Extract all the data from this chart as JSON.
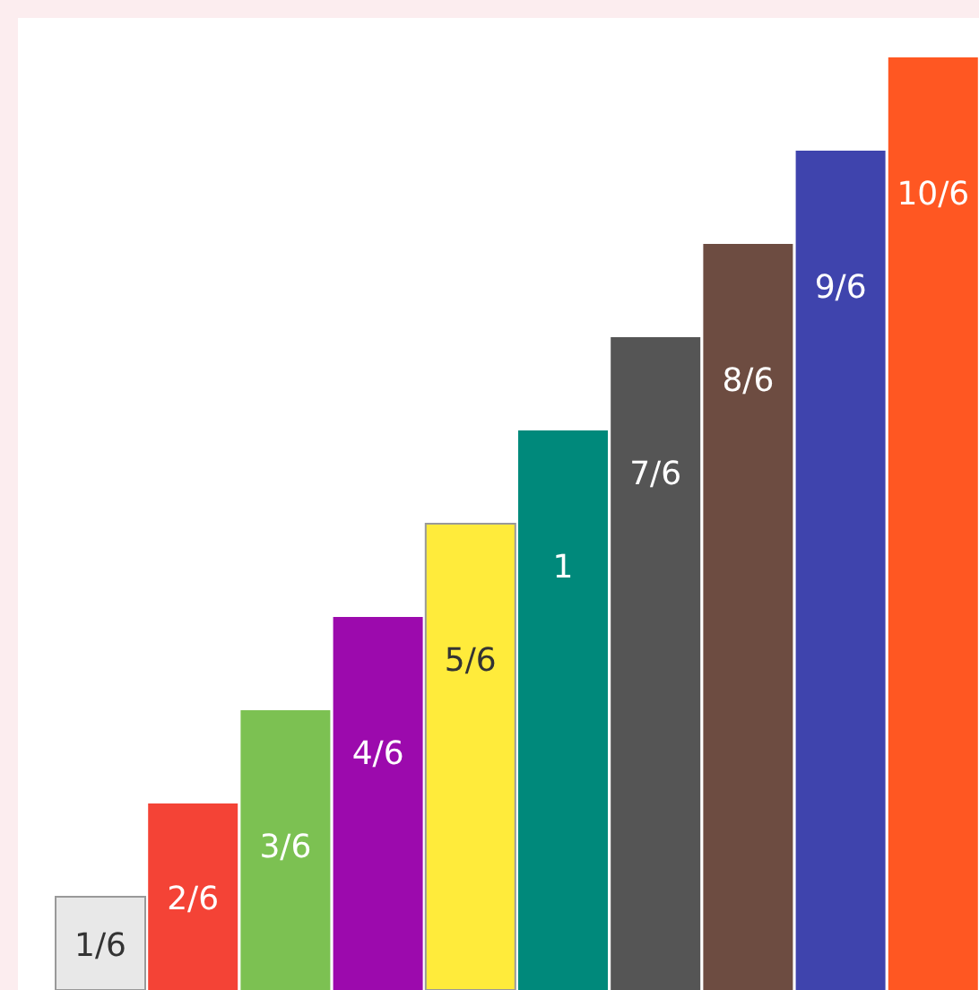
{
  "chart_data": {
    "type": "bar",
    "categories": [
      null,
      null,
      null,
      null,
      null,
      null,
      null,
      null,
      null,
      null
    ],
    "values": [
      0.1667,
      0.3333,
      0.5,
      0.6667,
      0.8333,
      1,
      1.1667,
      1.3333,
      1.5,
      1.6667
    ],
    "colors": [
      "#e8e8e8",
      "#f44336",
      "#7cc152",
      "#9c0aad",
      "#ffeb3b",
      "#00897b",
      "#555555",
      "#6d4c41",
      "#3f44ad",
      "#ff5722"
    ],
    "value_labels": [
      "1/6",
      "2/6",
      "3/6",
      "4/6",
      "5/6",
      "1",
      "7/6",
      "8/6",
      "9/6",
      "10/6"
    ],
    "grid": false,
    "legend": false
  }
}
